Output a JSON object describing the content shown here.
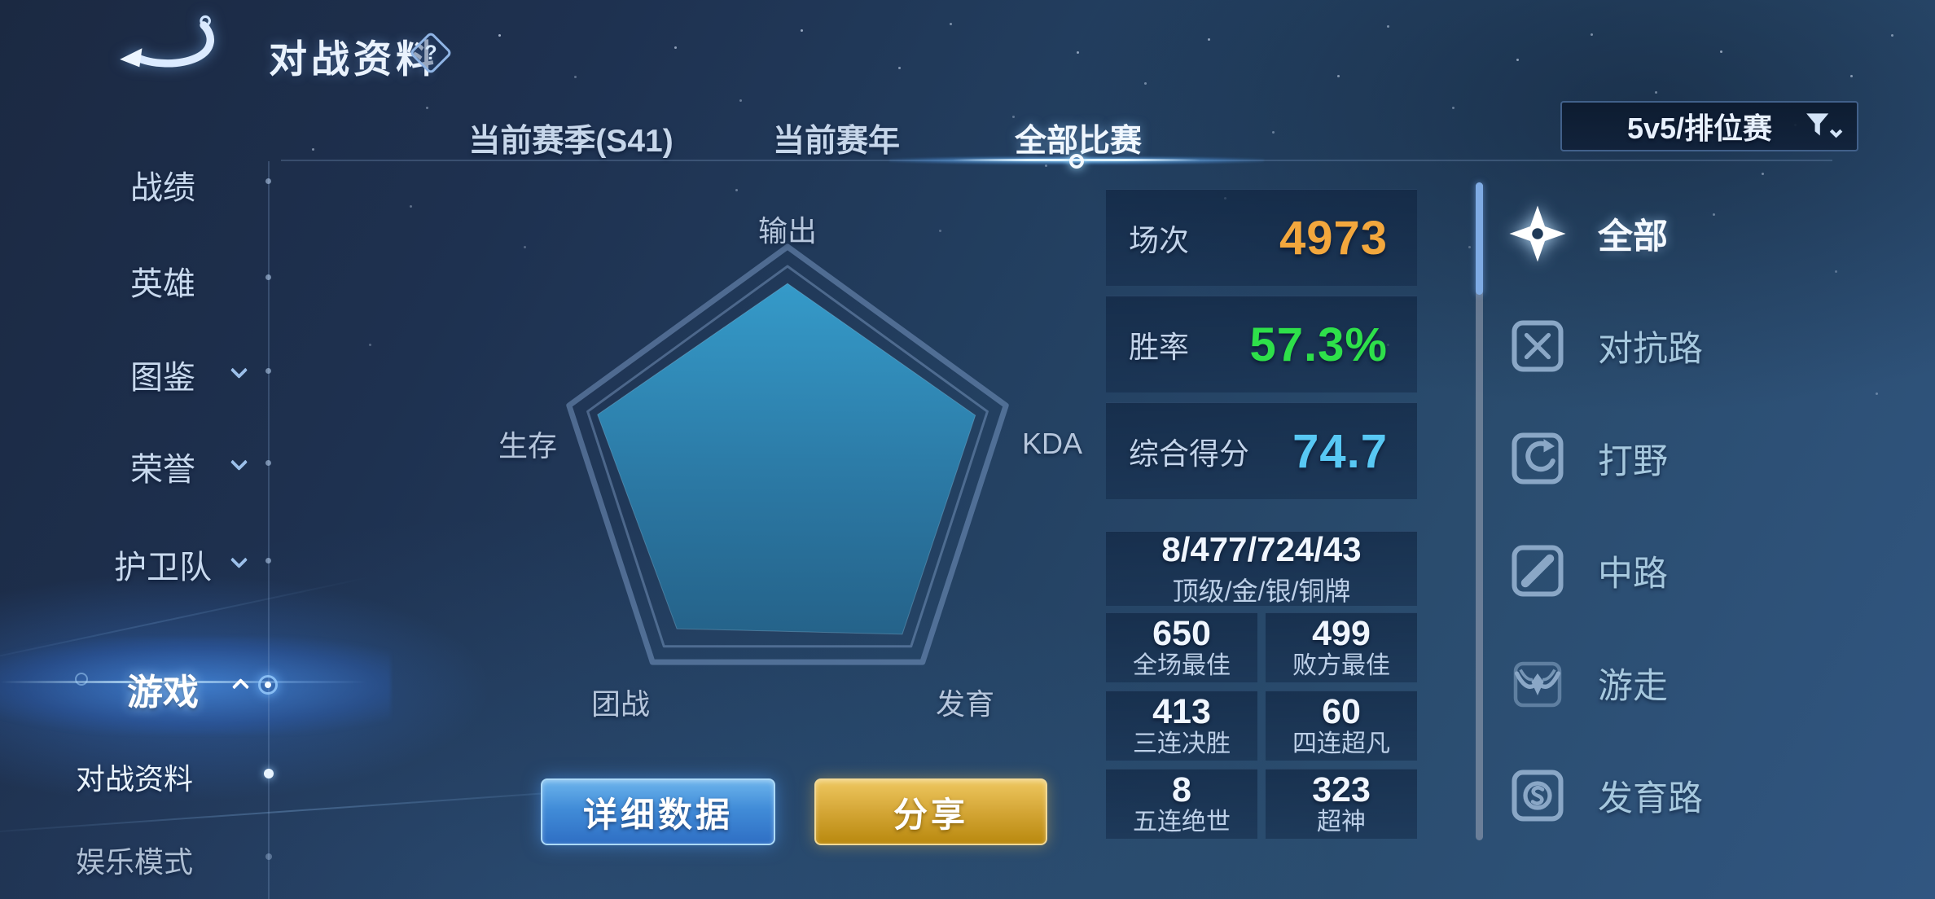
{
  "header": {
    "title": "对战资料",
    "help_glyph": "?"
  },
  "tabs": {
    "items": [
      {
        "label": "当前赛季(S41)",
        "active": false
      },
      {
        "label": "当前赛年",
        "active": false
      },
      {
        "label": "全部比赛",
        "active": true
      }
    ]
  },
  "filter": {
    "value": "5v5/排位赛"
  },
  "nav": {
    "items": [
      {
        "label": "战绩"
      },
      {
        "label": "英雄"
      },
      {
        "label": "图鉴",
        "expandable": true
      },
      {
        "label": "荣誉",
        "expandable": true
      },
      {
        "label": "护卫队",
        "expandable": true
      },
      {
        "label": "游戏",
        "expandable": true,
        "active": true
      }
    ],
    "subitems": [
      {
        "label": "对战资料",
        "active": true
      },
      {
        "label": "娱乐模式",
        "active": false
      }
    ]
  },
  "radar": {
    "type": "radar",
    "axes": [
      "输出",
      "KDA",
      "发育",
      "团战",
      "生存"
    ],
    "values": [
      0.84,
      0.86,
      0.85,
      0.82,
      0.87
    ],
    "fill_top": "#37a2d2",
    "fill_bottom": "#235e84"
  },
  "stats": {
    "rows": [
      {
        "label": "场次",
        "value": "4973",
        "color": "#f2a73d"
      },
      {
        "label": "胜率",
        "value": "57.3%",
        "color": "#2ee04a"
      },
      {
        "label": "综合得分",
        "value": "74.7",
        "color": "#58c8f4"
      }
    ]
  },
  "medals": {
    "summary_value": "8/477/724/43",
    "summary_label": "顶级/金/银/铜牌",
    "cells": [
      {
        "value": "650",
        "label": "全场最佳"
      },
      {
        "value": "499",
        "label": "败方最佳"
      },
      {
        "value": "413",
        "label": "三连决胜"
      },
      {
        "value": "60",
        "label": "四连超凡"
      },
      {
        "value": "8",
        "label": "五连绝世"
      },
      {
        "value": "323",
        "label": "超神"
      }
    ]
  },
  "actions": {
    "detail": "详细数据",
    "share": "分享"
  },
  "lanes": {
    "items": [
      {
        "label": "全部",
        "icon": "all-star-icon",
        "active": true
      },
      {
        "label": "对抗路",
        "icon": "clash-lane-icon",
        "active": false
      },
      {
        "label": "打野",
        "icon": "jungle-icon",
        "active": false
      },
      {
        "label": "中路",
        "icon": "mid-lane-icon",
        "active": false
      },
      {
        "label": "游走",
        "icon": "roam-icon",
        "active": false
      },
      {
        "label": "发育路",
        "icon": "farm-lane-icon",
        "active": false
      }
    ]
  }
}
